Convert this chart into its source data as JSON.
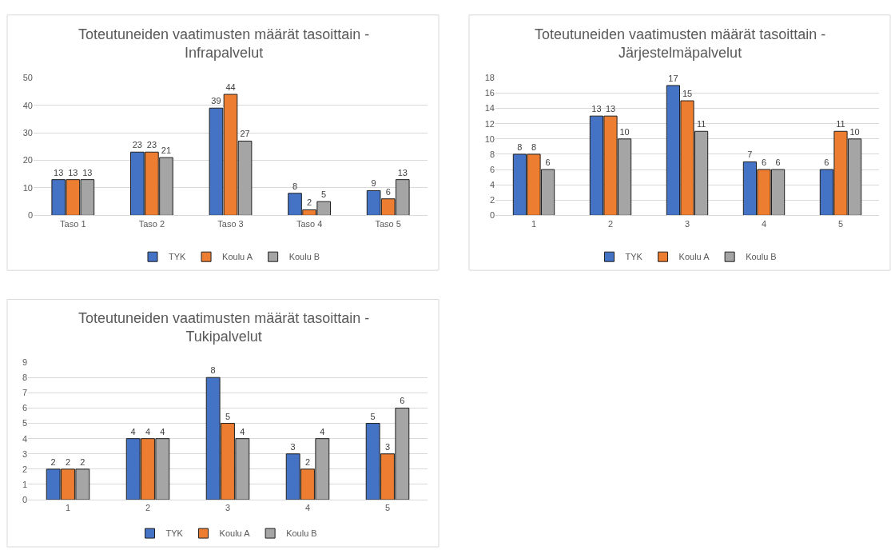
{
  "chart_data": [
    {
      "type": "bar",
      "title": "Toteutuneiden vaatimusten määrät tasoittain - Infrapalvelut",
      "categories": [
        "Taso 1",
        "Taso 2",
        "Taso 3",
        "Taso 4",
        "Taso 5"
      ],
      "series": [
        {
          "name": "TYK",
          "color": "#4472c4",
          "values": [
            13,
            23,
            39,
            8,
            9
          ]
        },
        {
          "name": "Koulu A",
          "color": "#ed7d31",
          "values": [
            13,
            23,
            44,
            2,
            6
          ]
        },
        {
          "name": "Koulu B",
          "color": "#a5a5a5",
          "values": [
            13,
            21,
            27,
            5,
            13
          ]
        }
      ],
      "ylim": [
        0,
        50
      ],
      "yticks": [
        0,
        10,
        20,
        30,
        40,
        50
      ],
      "grid": "y",
      "legend": "bottom",
      "data_labels": true
    },
    {
      "type": "bar",
      "title": "Toteutuneiden vaatimusten määrät tasoittain - Järjestelmäpalvelut",
      "categories": [
        "1",
        "2",
        "3",
        "4",
        "5"
      ],
      "series": [
        {
          "name": "TYK",
          "color": "#4472c4",
          "values": [
            8,
            13,
            17,
            7,
            6
          ]
        },
        {
          "name": "Koulu A",
          "color": "#ed7d31",
          "values": [
            8,
            13,
            15,
            6,
            11
          ]
        },
        {
          "name": "Koulu B",
          "color": "#a5a5a5",
          "values": [
            6,
            10,
            11,
            6,
            10
          ]
        }
      ],
      "ylim": [
        0,
        18
      ],
      "yticks": [
        0,
        2,
        4,
        6,
        8,
        10,
        12,
        14,
        16,
        18
      ],
      "grid": "y",
      "legend": "bottom",
      "data_labels": true
    },
    {
      "type": "bar",
      "title": "Toteutuneiden vaatimusten määrät tasoittain - Tukipalvelut",
      "categories": [
        "1",
        "2",
        "3",
        "4",
        "5"
      ],
      "series": [
        {
          "name": "TYK",
          "color": "#4472c4",
          "values": [
            2,
            4,
            8,
            3,
            5
          ]
        },
        {
          "name": "Koulu A",
          "color": "#ed7d31",
          "values": [
            2,
            4,
            5,
            2,
            3
          ]
        },
        {
          "name": "Koulu B",
          "color": "#a5a5a5",
          "values": [
            2,
            4,
            4,
            4,
            6
          ]
        }
      ],
      "ylim": [
        0,
        9
      ],
      "yticks": [
        0,
        1,
        2,
        3,
        4,
        5,
        6,
        7,
        8,
        9
      ],
      "grid": "y",
      "legend": "bottom",
      "data_labels": true
    }
  ]
}
